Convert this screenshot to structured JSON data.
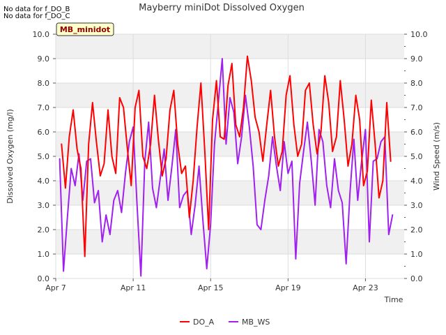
{
  "notes": [
    "No data for f_DO_B",
    "No data for f_DO_C"
  ],
  "chart_data": {
    "type": "line",
    "title": "Mayberry miniDot Dissolved Oxygen",
    "badge": "MB_minidot",
    "xlabel": "Time",
    "ylabel_left": "Dissolved Oxygen (mg/l)",
    "ylabel_right": "Wind Speed (m/s)",
    "xlim": [
      7.0,
      25.0
    ],
    "xticks": [
      7,
      11,
      15,
      19,
      23
    ],
    "xtick_labels": [
      "Apr 7",
      "Apr 11",
      "Apr 15",
      "Apr 19",
      "Apr 23"
    ],
    "ylim_left": [
      0.0,
      10.0
    ],
    "ylim_right": [
      0.0,
      10.0
    ],
    "yticks": [
      "0.0",
      "1.0",
      "2.0",
      "3.0",
      "4.0",
      "5.0",
      "6.0",
      "7.0",
      "8.0",
      "9.0",
      "10.0"
    ],
    "grid": true,
    "legend_placement": "bottom-center",
    "series": [
      {
        "name": "DO_A",
        "color": "#ff0000",
        "axis": "left",
        "x": [
          7.3,
          7.5,
          7.7,
          7.9,
          8.1,
          8.3,
          8.5,
          8.7,
          8.9,
          9.1,
          9.3,
          9.5,
          9.7,
          9.9,
          10.1,
          10.3,
          10.5,
          10.7,
          10.9,
          11.1,
          11.3,
          11.5,
          11.7,
          11.9,
          12.1,
          12.3,
          12.5,
          12.7,
          12.9,
          13.1,
          13.3,
          13.5,
          13.7,
          13.9,
          14.1,
          14.3,
          14.5,
          14.7,
          14.9,
          15.1,
          15.3,
          15.5,
          15.7,
          15.9,
          16.1,
          16.3,
          16.5,
          16.7,
          16.9,
          17.1,
          17.3,
          17.5,
          17.7,
          17.9,
          18.1,
          18.3,
          18.5,
          18.7,
          18.9,
          19.1,
          19.3,
          19.5,
          19.7,
          19.9,
          20.1,
          20.3,
          20.5,
          20.7,
          20.9,
          21.1,
          21.3,
          21.5,
          21.7,
          21.9,
          22.1,
          22.3,
          22.5,
          22.7,
          22.9,
          23.1,
          23.3,
          23.5,
          23.7,
          23.9,
          24.1,
          24.3
        ],
        "values": [
          5.5,
          3.7,
          5.8,
          6.9,
          5.3,
          4.5,
          0.9,
          5.5,
          7.2,
          5.6,
          4.2,
          4.7,
          6.9,
          5.0,
          4.3,
          7.4,
          7.0,
          5.3,
          3.8,
          7.0,
          7.7,
          5.0,
          4.5,
          5.5,
          7.5,
          5.7,
          4.2,
          4.9,
          6.9,
          7.7,
          5.5,
          4.3,
          4.6,
          2.5,
          4.0,
          6.2,
          8.0,
          5.2,
          2.0,
          6.5,
          8.1,
          5.8,
          5.7,
          7.9,
          8.8,
          6.3,
          5.8,
          7.0,
          9.1,
          8.1,
          6.6,
          6.0,
          4.8,
          6.3,
          7.7,
          5.8,
          4.6,
          5.2,
          7.5,
          8.3,
          6.3,
          5.0,
          5.5,
          7.7,
          8.0,
          6.3,
          5.1,
          6.0,
          8.3,
          7.2,
          5.2,
          5.8,
          8.1,
          6.5,
          4.6,
          5.5,
          7.5,
          6.5,
          3.8,
          4.4,
          7.3,
          5.5,
          3.3,
          4.0,
          7.2,
          4.8
        ]
      },
      {
        "name": "MB_WS",
        "color": "#a020f0",
        "axis": "right",
        "x": [
          7.2,
          7.4,
          7.6,
          7.8,
          8.0,
          8.2,
          8.4,
          8.6,
          8.8,
          9.0,
          9.2,
          9.4,
          9.6,
          9.8,
          10.0,
          10.2,
          10.4,
          10.6,
          10.8,
          11.0,
          11.2,
          11.4,
          11.6,
          11.8,
          12.0,
          12.2,
          12.4,
          12.6,
          12.8,
          13.0,
          13.2,
          13.4,
          13.6,
          13.8,
          14.0,
          14.2,
          14.4,
          14.6,
          14.8,
          15.0,
          15.2,
          15.4,
          15.6,
          15.8,
          16.0,
          16.2,
          16.4,
          16.6,
          16.8,
          17.0,
          17.2,
          17.4,
          17.6,
          17.8,
          18.0,
          18.2,
          18.4,
          18.6,
          18.8,
          19.0,
          19.2,
          19.4,
          19.6,
          19.8,
          20.0,
          20.2,
          20.4,
          20.6,
          20.8,
          21.0,
          21.2,
          21.4,
          21.6,
          21.8,
          22.0,
          22.2,
          22.4,
          22.6,
          22.8,
          23.0,
          23.2,
          23.4,
          23.6,
          23.8,
          24.0,
          24.2,
          24.4
        ],
        "values": [
          4.9,
          0.3,
          2.5,
          4.5,
          3.8,
          5.1,
          3.2,
          4.8,
          4.9,
          3.1,
          3.6,
          1.5,
          2.6,
          1.8,
          3.2,
          3.6,
          2.7,
          4.3,
          5.6,
          6.2,
          3.0,
          0.1,
          4.8,
          6.4,
          3.7,
          2.9,
          4.1,
          5.3,
          3.2,
          4.6,
          6.1,
          2.9,
          3.4,
          3.6,
          1.8,
          3.0,
          4.6,
          2.4,
          0.4,
          2.2,
          5.5,
          7.2,
          9.0,
          5.5,
          7.4,
          6.8,
          4.7,
          5.8,
          7.5,
          6.2,
          4.6,
          2.2,
          2.0,
          3.2,
          4.2,
          5.8,
          4.6,
          3.6,
          5.6,
          4.3,
          4.8,
          0.8,
          3.9,
          5.2,
          6.4,
          4.8,
          3.0,
          6.1,
          5.6,
          3.8,
          2.9,
          4.9,
          3.6,
          3.1,
          0.6,
          3.5,
          5.7,
          3.2,
          4.8,
          6.1,
          1.5,
          4.8,
          4.9,
          5.6,
          5.8,
          1.8,
          2.6
        ]
      }
    ]
  }
}
